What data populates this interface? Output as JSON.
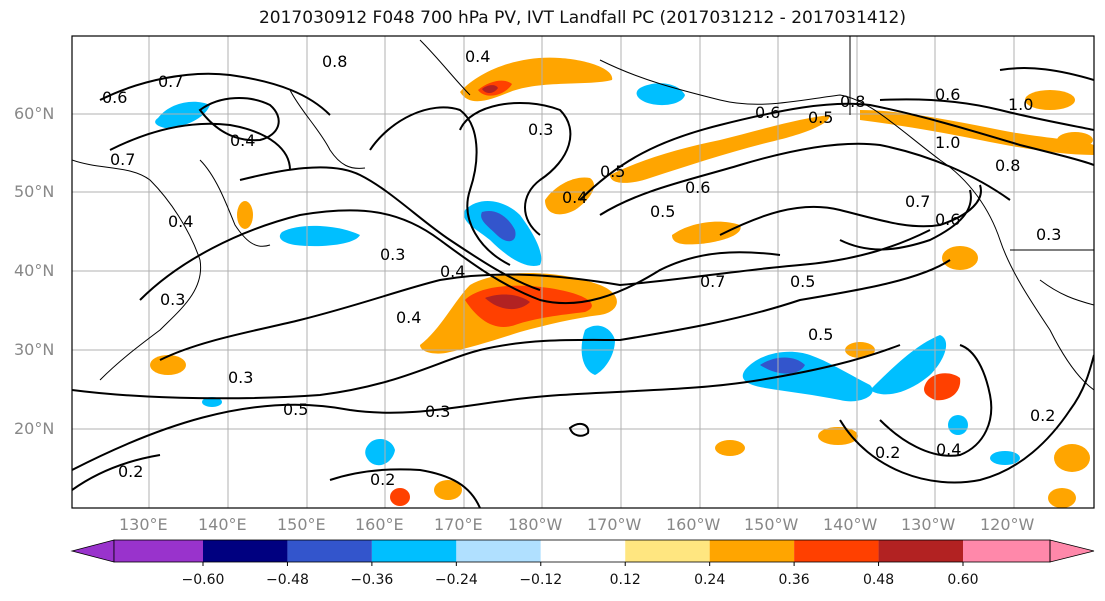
{
  "title": "2017030912 F048 700 hPa PV, IVT Landfall PC (2017031212 - 2017031412)",
  "lat_labels": [
    "60°N",
    "50°N",
    "40°N",
    "30°N",
    "20°N"
  ],
  "lon_labels": [
    "130°E",
    "140°E",
    "150°E",
    "160°E",
    "170°E",
    "180°W",
    "170°W",
    "160°W",
    "150°W",
    "140°W",
    "130°W",
    "120°W"
  ],
  "contour_labels": [
    "0.4",
    "0.8",
    "0.7",
    "0.6",
    "0.4",
    "0.7",
    "0.3",
    "0.4",
    "0.4",
    "0.3",
    "0.4",
    "0.4",
    "0.5",
    "0.5",
    "0.6",
    "0.5",
    "0.6",
    "0.7",
    "0.5",
    "0.5",
    "0.8",
    "1.0",
    "0.6",
    "1.0",
    "0.8",
    "0.7",
    "0.6",
    "0.3",
    "0.3",
    "0.5",
    "0.3",
    "0.2",
    "0.2",
    "0.2",
    "0.4",
    "0.2",
    "0.3"
  ],
  "colorbar": {
    "ticks": [
      "−0.60",
      "−0.48",
      "−0.36",
      "−0.24",
      "−0.12",
      "0.12",
      "0.24",
      "0.36",
      "0.48",
      "0.60"
    ],
    "colors": [
      "#9933cc",
      "#000080",
      "#3355cc",
      "#00bfff",
      "#b0e0ff",
      "#ffffff",
      "#ffe680",
      "#ffa500",
      "#ff4000",
      "#b22222",
      "#ff88aa"
    ]
  }
}
